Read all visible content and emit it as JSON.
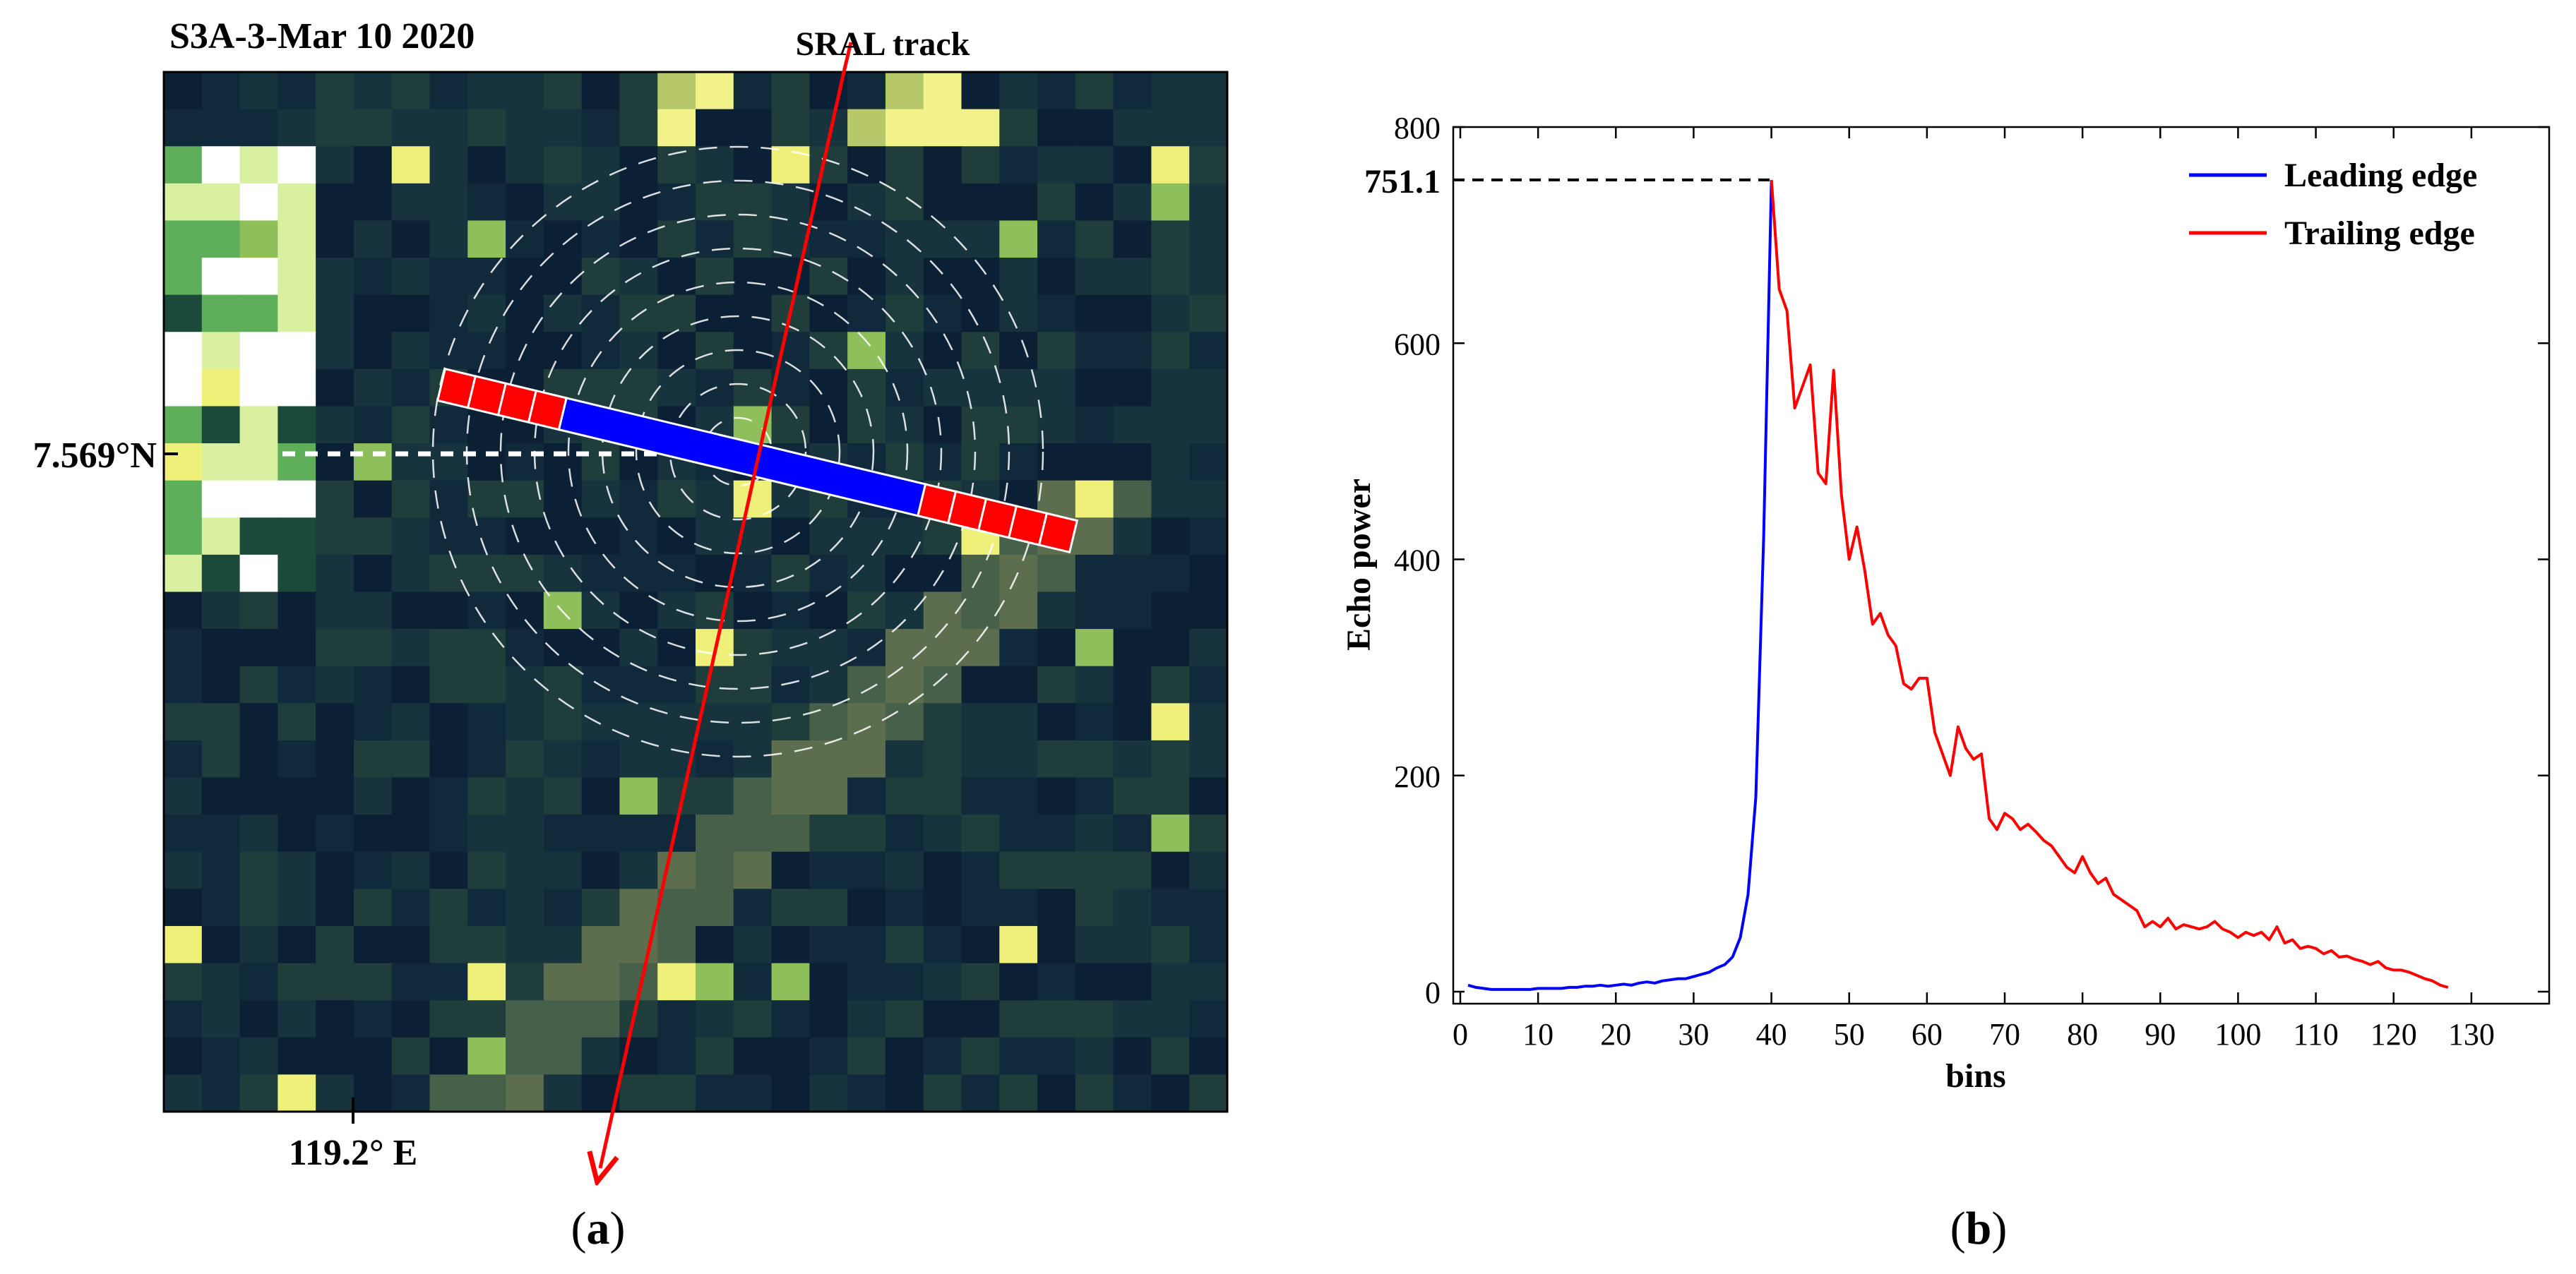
{
  "panel_a": {
    "title": "S3A-3-Mar 10 2020",
    "track_label": "SRAL track",
    "lat_label": "7.569°N",
    "lon_label": "119.2° E",
    "caption_open": "(",
    "caption_letter": "a",
    "caption_close": ")"
  },
  "panel_b": {
    "caption_open": "(",
    "caption_letter": "b",
    "caption_close": ")"
  },
  "colors": {
    "leading": "#0000ff",
    "trailing": "#ff0000",
    "background": "#0a1a2e"
  },
  "chart_data": {
    "type": "line",
    "xlabel": "bins",
    "ylabel": "Echo power",
    "xlim": [
      0,
      140
    ],
    "ylim": [
      0,
      800
    ],
    "xticks": [
      0,
      10,
      20,
      30,
      40,
      50,
      60,
      70,
      80,
      90,
      100,
      110,
      120,
      130
    ],
    "yticks": [
      0,
      200,
      400,
      600,
      800
    ],
    "peak_label": "751.1",
    "peak": {
      "x": 40,
      "y": 751.1
    },
    "legend_position": "top-right",
    "series": [
      {
        "name": "Leading edge",
        "color": "#0000ff",
        "x": [
          1,
          2,
          3,
          4,
          5,
          6,
          7,
          8,
          9,
          10,
          11,
          12,
          13,
          14,
          15,
          16,
          17,
          18,
          19,
          20,
          21,
          22,
          23,
          24,
          25,
          26,
          27,
          28,
          29,
          30,
          31,
          32,
          33,
          34,
          35,
          36,
          37,
          38,
          39,
          40
        ],
        "y": [
          6,
          4,
          3,
          2,
          2,
          2,
          2,
          2,
          2,
          3,
          3,
          3,
          3,
          4,
          4,
          5,
          5,
          6,
          5,
          6,
          7,
          6,
          8,
          9,
          8,
          10,
          11,
          12,
          12,
          14,
          16,
          18,
          22,
          25,
          32,
          50,
          90,
          180,
          420,
          751.1
        ]
      },
      {
        "name": "Trailing edge",
        "color": "#ff0000",
        "x": [
          40,
          41,
          42,
          43,
          44,
          45,
          46,
          47,
          48,
          49,
          50,
          51,
          52,
          53,
          54,
          55,
          56,
          57,
          58,
          59,
          60,
          61,
          62,
          63,
          64,
          65,
          66,
          67,
          68,
          69,
          70,
          71,
          72,
          73,
          74,
          75,
          76,
          77,
          78,
          79,
          80,
          81,
          82,
          83,
          84,
          85,
          86,
          87,
          88,
          89,
          90,
          91,
          92,
          93,
          94,
          95,
          96,
          97,
          98,
          99,
          100,
          101,
          102,
          103,
          104,
          105,
          106,
          107,
          108,
          109,
          110,
          111,
          112,
          113,
          114,
          115,
          116,
          117,
          118,
          119,
          120,
          121,
          122,
          123,
          124,
          125,
          126,
          127
        ],
        "y": [
          751.1,
          650,
          630,
          540,
          560,
          580,
          480,
          470,
          575,
          460,
          400,
          430,
          390,
          340,
          350,
          330,
          320,
          285,
          280,
          290,
          290,
          240,
          220,
          200,
          245,
          225,
          215,
          220,
          160,
          150,
          165,
          160,
          150,
          155,
          148,
          140,
          135,
          125,
          115,
          110,
          125,
          110,
          100,
          105,
          90,
          85,
          80,
          75,
          60,
          65,
          60,
          68,
          58,
          62,
          60,
          58,
          60,
          65,
          58,
          55,
          50,
          55,
          52,
          55,
          48,
          60,
          45,
          48,
          40,
          42,
          40,
          35,
          38,
          32,
          33,
          30,
          28,
          25,
          28,
          22,
          20,
          20,
          18,
          15,
          12,
          10,
          6,
          4
        ]
      }
    ]
  }
}
